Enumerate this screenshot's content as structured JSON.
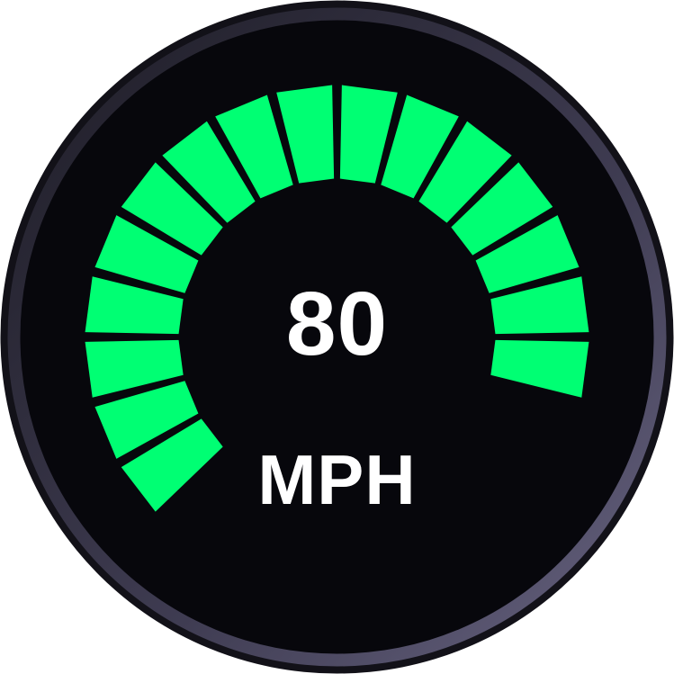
{
  "gauge": {
    "value": "80",
    "unit": "MPH",
    "active_segments": 16,
    "total_segments": 16,
    "colors": {
      "segment_active": "#00ff73",
      "segment_gap": "#0a0a10",
      "face": "#07070c",
      "bezel_inner": "#5a5770",
      "bezel_outer": "#2a2836"
    }
  }
}
